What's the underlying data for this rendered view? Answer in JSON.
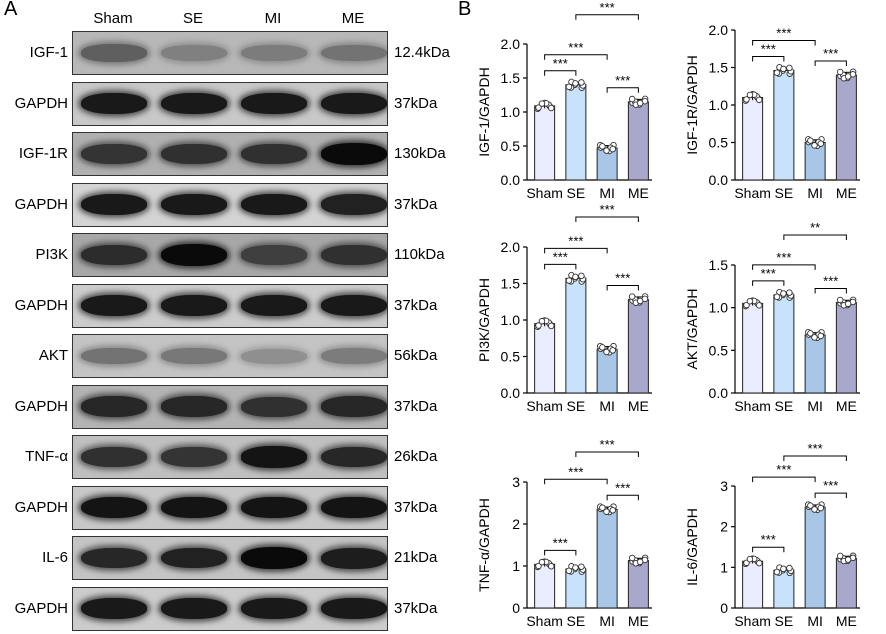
{
  "panels": {
    "a": "A",
    "b": "B"
  },
  "lanes": [
    "Sham",
    "SE",
    "MI",
    "ME"
  ],
  "blots": [
    {
      "label": "IGF-1",
      "size": "12.4kDa",
      "bg": "#b8b8b8",
      "band": [
        0.55,
        0.38,
        0.4,
        0.45
      ]
    },
    {
      "label": "GAPDH",
      "size": "37kDa",
      "bg": "#c8c8c8",
      "band": [
        0.92,
        0.92,
        0.92,
        0.92
      ]
    },
    {
      "label": "IGF-1R",
      "size": "130kDa",
      "bg": "#b0b0b0",
      "band": [
        0.78,
        0.8,
        0.8,
        1.0
      ]
    },
    {
      "label": "GAPDH",
      "size": "37kDa",
      "bg": "#d4d4d4",
      "band": [
        0.92,
        0.92,
        0.92,
        0.88
      ]
    },
    {
      "label": "PI3K",
      "size": "110kDa",
      "bg": "#a8a8a8",
      "band": [
        0.82,
        1.0,
        0.72,
        0.8
      ]
    },
    {
      "label": "GAPDH",
      "size": "37kDa",
      "bg": "#cccccc",
      "band": [
        0.92,
        0.92,
        0.92,
        0.92
      ]
    },
    {
      "label": "AKT",
      "size": "56kDa",
      "bg": "#c4c4c4",
      "band": [
        0.45,
        0.42,
        0.3,
        0.4
      ]
    },
    {
      "label": "GAPDH",
      "size": "37kDa",
      "bg": "#b4b4b4",
      "band": [
        0.85,
        0.85,
        0.8,
        0.85
      ]
    },
    {
      "label": "TNF-α",
      "size": "26kDa",
      "bg": "#c0c0c0",
      "band": [
        0.8,
        0.78,
        0.95,
        0.85
      ]
    },
    {
      "label": "GAPDH",
      "size": "37kDa",
      "bg": "#c8c8c8",
      "band": [
        0.95,
        0.95,
        0.95,
        0.95
      ]
    },
    {
      "label": "IL-6",
      "size": "21kDa",
      "bg": "#c4c4c4",
      "band": [
        0.85,
        0.88,
        1.0,
        0.9
      ]
    },
    {
      "label": "GAPDH",
      "size": "37kDa",
      "bg": "#cccccc",
      "band": [
        0.92,
        0.92,
        0.92,
        0.92
      ]
    }
  ],
  "bar_colors": [
    "#ececff",
    "#c9e2fb",
    "#a8c6e6",
    "#a9a8cc"
  ],
  "sig_star": "***",
  "chart_data": [
    {
      "type": "bar",
      "categories": [
        "Sham",
        "SE",
        "MI",
        "ME"
      ],
      "values": [
        1.09,
        1.4,
        0.47,
        1.15
      ],
      "ylabel": "IGF-1/GAPDH",
      "ylim": [
        0,
        2.0
      ],
      "yticks": [
        "0.0",
        "0.5",
        "1.0",
        "1.5",
        "2.0"
      ],
      "annotations": [
        {
          "from": "Sham",
          "to": "SE",
          "label": "***"
        },
        {
          "from": "Sham",
          "to": "MI",
          "label": "***"
        },
        {
          "from": "MI",
          "to": "ME",
          "label": "***"
        },
        {
          "from": "SE",
          "to": "ME",
          "label": "***"
        }
      ]
    },
    {
      "type": "bar",
      "categories": [
        "Sham",
        "SE",
        "MI",
        "ME"
      ],
      "values": [
        1.1,
        1.46,
        0.5,
        1.4
      ],
      "ylabel": "IGF-1R/GAPDH",
      "ylim": [
        0,
        2.0
      ],
      "yticks": [
        "0.0",
        "0.5",
        "1.0",
        "1.5",
        "2.0"
      ],
      "annotations": [
        {
          "from": "Sham",
          "to": "SE",
          "label": "***"
        },
        {
          "from": "Sham",
          "to": "MI",
          "label": "***"
        },
        {
          "from": "MI",
          "to": "ME",
          "label": "***"
        }
      ]
    },
    {
      "type": "bar",
      "categories": [
        "Sham",
        "SE",
        "MI",
        "ME"
      ],
      "values": [
        0.95,
        1.57,
        0.6,
        1.28
      ],
      "ylabel": "PI3K/GAPDH",
      "ylim": [
        0,
        2.0
      ],
      "yticks": [
        "0.0",
        "0.5",
        "1.0",
        "1.5",
        "2.0"
      ],
      "annotations": [
        {
          "from": "Sham",
          "to": "SE",
          "label": "***"
        },
        {
          "from": "Sham",
          "to": "MI",
          "label": "***"
        },
        {
          "from": "MI",
          "to": "ME",
          "label": "***"
        },
        {
          "from": "SE",
          "to": "ME",
          "label": "***"
        }
      ]
    },
    {
      "type": "bar",
      "categories": [
        "Sham",
        "SE",
        "MI",
        "ME"
      ],
      "values": [
        1.05,
        1.15,
        0.68,
        1.06
      ],
      "ylabel": "AKT/GAPDH",
      "ylim": [
        0,
        1.5
      ],
      "yticks": [
        "0.0",
        "0.5",
        "1.0",
        "1.5"
      ],
      "annotations": [
        {
          "from": "Sham",
          "to": "SE",
          "label": "***"
        },
        {
          "from": "Sham",
          "to": "MI",
          "label": "***"
        },
        {
          "from": "MI",
          "to": "ME",
          "label": "***"
        },
        {
          "from": "SE",
          "to": "ME",
          "label": "**"
        }
      ]
    },
    {
      "type": "bar",
      "categories": [
        "Sham",
        "SE",
        "MI",
        "ME"
      ],
      "values": [
        1.04,
        0.93,
        2.35,
        1.13
      ],
      "ylabel": "TNF-α/GAPDH",
      "ylim": [
        0,
        3
      ],
      "yticks": [
        "0",
        "1",
        "2",
        "3"
      ],
      "annotations": [
        {
          "from": "Sham",
          "to": "SE",
          "label": "***"
        },
        {
          "from": "Sham",
          "to": "MI",
          "label": "***"
        },
        {
          "from": "MI",
          "to": "ME",
          "label": "***"
        },
        {
          "from": "SE",
          "to": "ME",
          "label": "***"
        }
      ]
    },
    {
      "type": "bar",
      "categories": [
        "Sham",
        "SE",
        "MI",
        "ME"
      ],
      "values": [
        1.15,
        0.93,
        2.48,
        1.22
      ],
      "ylabel": "IL-6/GAPDH",
      "ylim": [
        0,
        3
      ],
      "yticks": [
        "0",
        "1",
        "2",
        "3"
      ],
      "annotations": [
        {
          "from": "Sham",
          "to": "SE",
          "label": "***"
        },
        {
          "from": "Sham",
          "to": "MI",
          "label": "***"
        },
        {
          "from": "MI",
          "to": "ME",
          "label": "***"
        },
        {
          "from": "SE",
          "to": "ME",
          "label": "***"
        }
      ]
    }
  ]
}
